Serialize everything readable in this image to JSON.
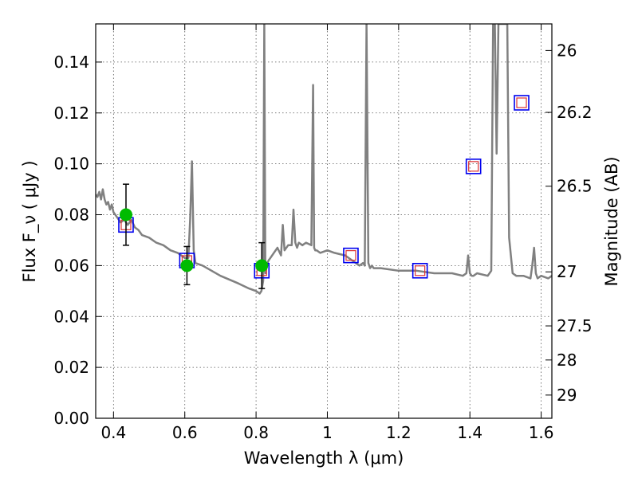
{
  "chart_data": {
    "type": "line",
    "title": "",
    "xlabel": "Wavelength  λ (μm)",
    "ylabel": "Flux  F_ν  ( μJy )",
    "ylabel_right": "Magnitude (AB)",
    "xlim": [
      0.35,
      1.63
    ],
    "ylim": [
      0.0,
      0.155
    ],
    "grid": true,
    "x_ticks": [
      0.4,
      0.6,
      0.8,
      1.0,
      1.2,
      1.4,
      1.6
    ],
    "x_tick_labels": [
      "0.4",
      "0.6",
      "0.8",
      "1",
      "1.2",
      "1.4",
      "1.6"
    ],
    "y_ticks": [
      0.0,
      0.02,
      0.04,
      0.06,
      0.08,
      0.1,
      0.12,
      0.14
    ],
    "y_tick_labels": [
      "0.00",
      "0.02",
      "0.04",
      "0.06",
      "0.08",
      "0.10",
      "0.12",
      "0.14"
    ],
    "right_ticks": [
      26,
      26.2,
      26.5,
      27,
      27.5,
      28,
      29
    ],
    "right_tick_labels": [
      "26",
      "26.2",
      "26.5",
      "27",
      "27.5",
      "28",
      "29"
    ],
    "colors": {
      "spectrum": "#808080",
      "observed": "#00bb00",
      "model_box": "#0000ee",
      "model_box_inner": "#dd3333",
      "errorbar": "#000000",
      "grid": "#555555"
    },
    "series": [
      {
        "kind": "spectrum",
        "x": [
          0.35,
          0.355,
          0.36,
          0.365,
          0.37,
          0.375,
          0.38,
          0.385,
          0.39,
          0.395,
          0.4,
          0.41,
          0.42,
          0.43,
          0.44,
          0.45,
          0.46,
          0.47,
          0.48,
          0.5,
          0.52,
          0.54,
          0.56,
          0.58,
          0.6,
          0.61,
          0.615,
          0.62,
          0.625,
          0.63,
          0.65,
          0.7,
          0.75,
          0.78,
          0.8,
          0.81,
          0.815,
          0.82,
          0.823,
          0.826,
          0.83,
          0.835,
          0.84,
          0.85,
          0.86,
          0.87,
          0.875,
          0.88,
          0.89,
          0.9,
          0.905,
          0.91,
          0.915,
          0.92,
          0.93,
          0.94,
          0.955,
          0.96,
          0.963,
          0.966,
          0.97,
          0.98,
          1.0,
          1.02,
          1.05,
          1.07,
          1.08,
          1.09,
          1.1,
          1.105,
          1.11,
          1.115,
          1.12,
          1.125,
          1.13,
          1.15,
          1.2,
          1.25,
          1.3,
          1.35,
          1.38,
          1.39,
          1.395,
          1.4,
          1.405,
          1.41,
          1.42,
          1.45,
          1.46,
          1.465,
          1.47,
          1.475,
          1.48,
          1.485,
          1.49,
          1.495,
          1.5,
          1.505,
          1.51,
          1.52,
          1.53,
          1.55,
          1.57,
          1.575,
          1.58,
          1.585,
          1.59,
          1.6,
          1.62,
          1.63
        ],
        "y": [
          0.088,
          0.087,
          0.089,
          0.086,
          0.09,
          0.086,
          0.084,
          0.085,
          0.082,
          0.084,
          0.081,
          0.079,
          0.077,
          0.078,
          0.076,
          0.078,
          0.075,
          0.074,
          0.072,
          0.071,
          0.069,
          0.068,
          0.066,
          0.065,
          0.063,
          0.063,
          0.078,
          0.101,
          0.066,
          0.061,
          0.06,
          0.056,
          0.053,
          0.051,
          0.05,
          0.049,
          0.05,
          0.054,
          0.155,
          0.057,
          0.06,
          0.062,
          0.063,
          0.065,
          0.067,
          0.064,
          0.076,
          0.066,
          0.068,
          0.068,
          0.082,
          0.069,
          0.067,
          0.069,
          0.068,
          0.069,
          0.068,
          0.131,
          0.067,
          0.066,
          0.066,
          0.065,
          0.066,
          0.065,
          0.064,
          0.062,
          0.061,
          0.06,
          0.061,
          0.06,
          0.155,
          0.061,
          0.059,
          0.06,
          0.059,
          0.059,
          0.058,
          0.058,
          0.057,
          0.057,
          0.056,
          0.057,
          0.064,
          0.057,
          0.056,
          0.056,
          0.057,
          0.056,
          0.058,
          0.155,
          0.155,
          0.104,
          0.155,
          0.155,
          0.155,
          0.155,
          0.155,
          0.155,
          0.071,
          0.057,
          0.056,
          0.056,
          0.055,
          0.06,
          0.067,
          0.057,
          0.055,
          0.056,
          0.055,
          0.056
        ]
      },
      {
        "kind": "observed",
        "x": [
          0.435,
          0.606,
          0.816
        ],
        "y": [
          0.08,
          0.06,
          0.06
        ],
        "yerr": [
          0.012,
          0.0075,
          0.009
        ]
      },
      {
        "kind": "model",
        "x": [
          0.435,
          0.606,
          0.816,
          1.066,
          1.26,
          1.41,
          1.545
        ],
        "y": [
          0.076,
          0.062,
          0.058,
          0.064,
          0.058,
          0.099,
          0.124
        ]
      }
    ]
  }
}
